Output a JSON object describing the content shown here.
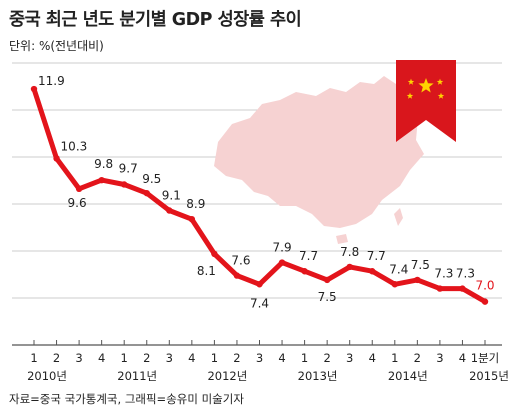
{
  "header": {
    "title": "중국 최근 년도 분기별 GDP 성장률 추이",
    "unit": "단위: %(전년대비)"
  },
  "footer": {
    "source": "자료=중국 국가통계국, 그래픽=송유미 미술기자"
  },
  "colors": {
    "line": "#e3141b",
    "last_label": "#e3141b",
    "grid": "#cccccc",
    "map": "#f6d2d2",
    "ribbon": "#d9161c",
    "star": "#ffd200"
  },
  "chart_data": {
    "type": "line",
    "title": "중국 최근 년도 분기별 GDP 성장률 추이",
    "ylabel": "단위: %(전년대비)",
    "xlabel": "",
    "grid": true,
    "ylim": [
      6,
      12.5
    ],
    "x_tick_labels": [
      "1",
      "2",
      "3",
      "4",
      "1",
      "2",
      "3",
      "4",
      "1",
      "2",
      "3",
      "4",
      "1",
      "2",
      "3",
      "4",
      "1",
      "2",
      "3",
      "4",
      "1분기"
    ],
    "year_labels": [
      {
        "label": "2010년",
        "index": 0
      },
      {
        "label": "2011년",
        "index": 4
      },
      {
        "label": "2012년",
        "index": 8
      },
      {
        "label": "2013년",
        "index": 12
      },
      {
        "label": "2014년",
        "index": 16
      },
      {
        "label": "2015년",
        "index": 20
      }
    ],
    "series": [
      {
        "values": [
          11.9,
          10.3,
          9.6,
          9.8,
          9.7,
          9.5,
          9.1,
          8.9,
          8.1,
          7.6,
          7.4,
          7.9,
          7.7,
          7.5,
          7.8,
          7.7,
          7.4,
          7.5,
          7.3,
          7.3,
          7.0
        ],
        "labels": [
          "11.9",
          "10.3",
          "9.6",
          "9.8",
          "9.7",
          "9.5",
          "9.1",
          "8.9",
          "8.1",
          "7.6",
          "7.4",
          "7.9",
          "7.7",
          "7.5",
          "7.8",
          "7.7",
          "7.4",
          "7.5",
          "7.3",
          "7.3",
          "7.0"
        ]
      }
    ]
  }
}
